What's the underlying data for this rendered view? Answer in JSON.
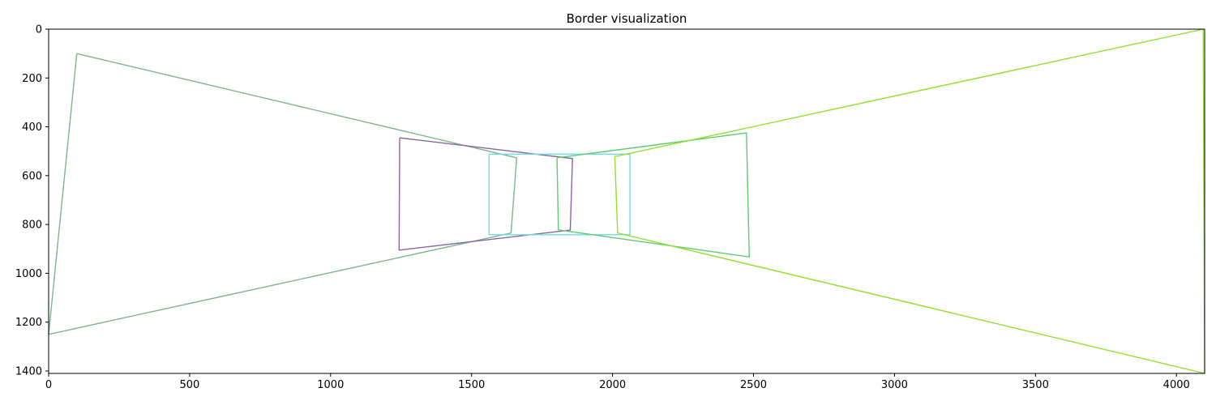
{
  "chart_data": {
    "type": "line",
    "title": "Border visualization",
    "xlabel": "",
    "ylabel": "",
    "xlim": [
      0,
      4100
    ],
    "ylim": [
      1410,
      0
    ],
    "y_inverted": true,
    "grid": false,
    "xticks": [
      0,
      500,
      1000,
      1500,
      2000,
      2500,
      3000,
      3500,
      4000
    ],
    "yticks": [
      0,
      200,
      400,
      600,
      800,
      1000,
      1200,
      1400
    ],
    "series": [
      {
        "color": "#7fb58c",
        "points": [
          [
            100,
            100
          ],
          [
            1660,
            527
          ],
          [
            1640,
            835
          ],
          [
            0,
            1250
          ],
          [
            100,
            100
          ]
        ]
      },
      {
        "color": "#8b64a3",
        "points": [
          [
            1245,
            445
          ],
          [
            1858,
            530
          ],
          [
            1850,
            823
          ],
          [
            1243,
            905
          ],
          [
            1245,
            445
          ]
        ]
      },
      {
        "color": "#6fdde6",
        "points": [
          [
            1562,
            512
          ],
          [
            2062,
            512
          ],
          [
            2062,
            842
          ],
          [
            1562,
            842
          ],
          [
            1562,
            512
          ]
        ]
      },
      {
        "color": "#5fca76",
        "points": [
          [
            1803,
            527
          ],
          [
            2475,
            425
          ],
          [
            2485,
            933
          ],
          [
            1808,
            822
          ],
          [
            1803,
            527
          ]
        ]
      },
      {
        "color": "#8fe02d",
        "points": [
          [
            2008,
            522
          ],
          [
            4095,
            0
          ],
          [
            4100,
            1410
          ],
          [
            2018,
            835
          ],
          [
            2008,
            522
          ]
        ]
      }
    ]
  }
}
